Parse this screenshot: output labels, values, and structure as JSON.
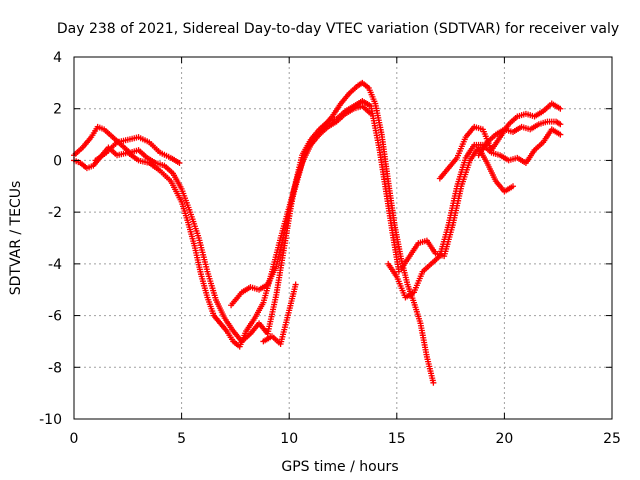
{
  "chart_data": {
    "type": "scatter",
    "title": "Day 238 of 2021, Sidereal Day-to-day VTEC variation (SDTVAR) for receiver valy",
    "xlabel": "GPS time / hours",
    "ylabel": "SDTVAR / TECUs",
    "xlim": [
      0,
      25
    ],
    "ylim": [
      -10,
      4
    ],
    "x_ticks": [
      "0",
      "5",
      "10",
      "15",
      "20",
      "25"
    ],
    "y_ticks": [
      "4",
      "2",
      "0",
      "-2",
      "-4",
      "-6",
      "-8",
      "-10"
    ],
    "grid": true,
    "legend": "none",
    "marker": "plus",
    "color": "#ff0000",
    "series": [
      {
        "x": [
          0.0,
          0.3,
          0.6,
          0.9,
          1.2,
          1.6,
          2.0,
          2.5,
          3.0,
          3.5,
          4.0,
          4.5,
          5.0,
          5.3,
          5.6,
          5.9,
          6.2,
          6.5,
          6.8,
          7.1,
          7.4,
          7.7,
          8.0,
          8.4,
          8.8,
          9.2,
          9.6,
          10.0,
          10.4,
          10.8,
          11.2,
          11.6,
          12.0,
          12.4,
          12.8,
          13.2,
          13.4,
          13.7,
          14.0,
          14.3,
          14.6,
          14.9,
          15.2,
          15.5,
          15.8,
          16.1,
          16.4,
          16.7
        ],
        "y": [
          0.0,
          -0.1,
          -0.3,
          -0.2,
          0.1,
          0.5,
          0.2,
          0.3,
          0.0,
          -0.1,
          -0.4,
          -0.8,
          -1.6,
          -2.4,
          -3.3,
          -4.4,
          -5.3,
          -6.0,
          -6.3,
          -6.6,
          -7.0,
          -7.2,
          -6.6,
          -6.1,
          -5.5,
          -4.3,
          -3.0,
          -1.8,
          -0.6,
          0.4,
          0.9,
          1.3,
          1.7,
          2.2,
          2.6,
          2.9,
          3.0,
          2.8,
          2.2,
          1.0,
          -0.8,
          -2.5,
          -3.8,
          -4.8,
          -5.5,
          -6.3,
          -7.6,
          -8.6
        ]
      },
      {
        "x": [
          0.0,
          0.4,
          0.8,
          1.1,
          1.4,
          1.8,
          2.2,
          2.6,
          3.0,
          3.4,
          3.8,
          4.2,
          4.6,
          5.0,
          5.4,
          5.8,
          6.2,
          6.6,
          7.0,
          7.4,
          7.8,
          8.2,
          8.6,
          9.0,
          9.4,
          9.8,
          10.2,
          10.6,
          11.0,
          11.4,
          11.8,
          12.2,
          12.6,
          13.0,
          13.4,
          13.8,
          14.2,
          14.5,
          14.8,
          15.1
        ],
        "y": [
          0.2,
          0.5,
          0.9,
          1.3,
          1.2,
          0.9,
          0.6,
          0.3,
          0.4,
          0.1,
          -0.1,
          -0.2,
          -0.5,
          -1.1,
          -2.0,
          -3.0,
          -4.3,
          -5.4,
          -6.1,
          -6.6,
          -7.0,
          -6.7,
          -6.3,
          -6.7,
          -5.2,
          -3.2,
          -1.2,
          0.2,
          0.8,
          1.2,
          1.5,
          1.6,
          1.9,
          2.1,
          2.3,
          2.1,
          0.4,
          -1.2,
          -2.8,
          -4.3
        ]
      },
      {
        "x": [
          1.0,
          1.5,
          2.0,
          2.5,
          3.0,
          3.5,
          4.0,
          4.5,
          4.9
        ],
        "y": [
          0.0,
          0.3,
          0.7,
          0.8,
          0.9,
          0.7,
          0.3,
          0.1,
          -0.1
        ]
      },
      {
        "x": [
          7.3,
          7.8,
          8.2,
          8.6,
          9.0,
          9.4,
          9.8,
          10.2,
          10.6,
          11.0,
          11.4,
          11.8,
          12.2,
          12.6,
          13.0,
          13.4,
          13.8
        ],
        "y": [
          -5.6,
          -5.1,
          -4.9,
          -5.0,
          -4.8,
          -4.1,
          -2.7,
          -1.3,
          -0.1,
          0.6,
          1.0,
          1.3,
          1.5,
          1.8,
          2.0,
          2.1,
          1.8
        ]
      },
      {
        "x": [
          14.6,
          15.0,
          15.4,
          15.8,
          16.2,
          16.6,
          17.0,
          17.4,
          17.8,
          18.2,
          18.6,
          19.0,
          19.4,
          19.8,
          20.2,
          20.6,
          21.0,
          21.4,
          21.8,
          22.2,
          22.6
        ],
        "y": [
          -4.0,
          -4.5,
          -5.3,
          -5.1,
          -4.3,
          -4.0,
          -3.7,
          -2.5,
          -1.0,
          0.1,
          0.6,
          0.6,
          0.3,
          0.2,
          0.0,
          0.1,
          -0.1,
          0.4,
          0.7,
          1.2,
          1.0
        ]
      },
      {
        "x": [
          15.2,
          15.6,
          16.0,
          16.4,
          16.8,
          17.2,
          17.6,
          18.0,
          18.4,
          18.8,
          19.2,
          19.6,
          20.0,
          20.4
        ],
        "y": [
          -4.2,
          -3.7,
          -3.2,
          -3.1,
          -3.6,
          -3.7,
          -2.5,
          -1.0,
          0.0,
          0.5,
          -0.1,
          -0.8,
          -1.2,
          -1.0
        ]
      },
      {
        "x": [
          17.0,
          17.4,
          17.8,
          18.2,
          18.6,
          19.0,
          19.4,
          19.8,
          20.2,
          20.6,
          21.0,
          21.4,
          21.8,
          22.2,
          22.6
        ],
        "y": [
          -0.7,
          -0.3,
          0.1,
          0.9,
          1.3,
          1.2,
          0.4,
          0.9,
          1.4,
          1.7,
          1.8,
          1.7,
          1.9,
          2.2,
          2.0
        ]
      },
      {
        "x": [
          18.8,
          19.2,
          19.6,
          20.0,
          20.4,
          20.8,
          21.2,
          21.6,
          22.0,
          22.4,
          22.6
        ],
        "y": [
          0.2,
          0.7,
          1.0,
          1.2,
          1.1,
          1.3,
          1.2,
          1.4,
          1.5,
          1.5,
          1.4
        ]
      },
      {
        "x": [
          8.8,
          9.2,
          9.6,
          10.0,
          10.3
        ],
        "y": [
          -7.0,
          -6.8,
          -7.1,
          -5.8,
          -4.8
        ]
      }
    ]
  }
}
